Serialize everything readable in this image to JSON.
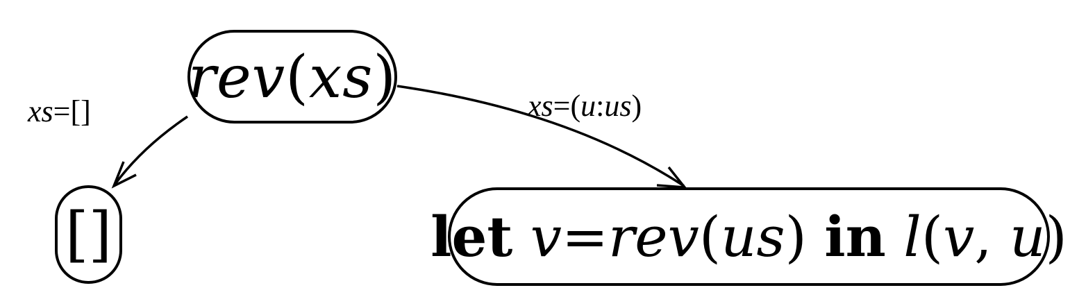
{
  "nodes": {
    "root": {
      "fn": "rev",
      "arg": "xs"
    },
    "empty": {
      "text": "[]"
    },
    "let": {
      "kw_let": "let",
      "var": "v",
      "eq": "=",
      "fn": "rev",
      "arg": "us",
      "kw_in": "in",
      "body_fn": "l",
      "body_arg1": "v",
      "body_sep": ", ",
      "body_arg2": "u"
    }
  },
  "edges": {
    "left": {
      "lhs": "xs",
      "eq": "=",
      "rhs": "[]"
    },
    "right": {
      "lhs": "xs",
      "eq": "=",
      "rhs_open": "(",
      "head": "u",
      "cons": ":",
      "tail": "us",
      "rhs_close": ")"
    }
  }
}
